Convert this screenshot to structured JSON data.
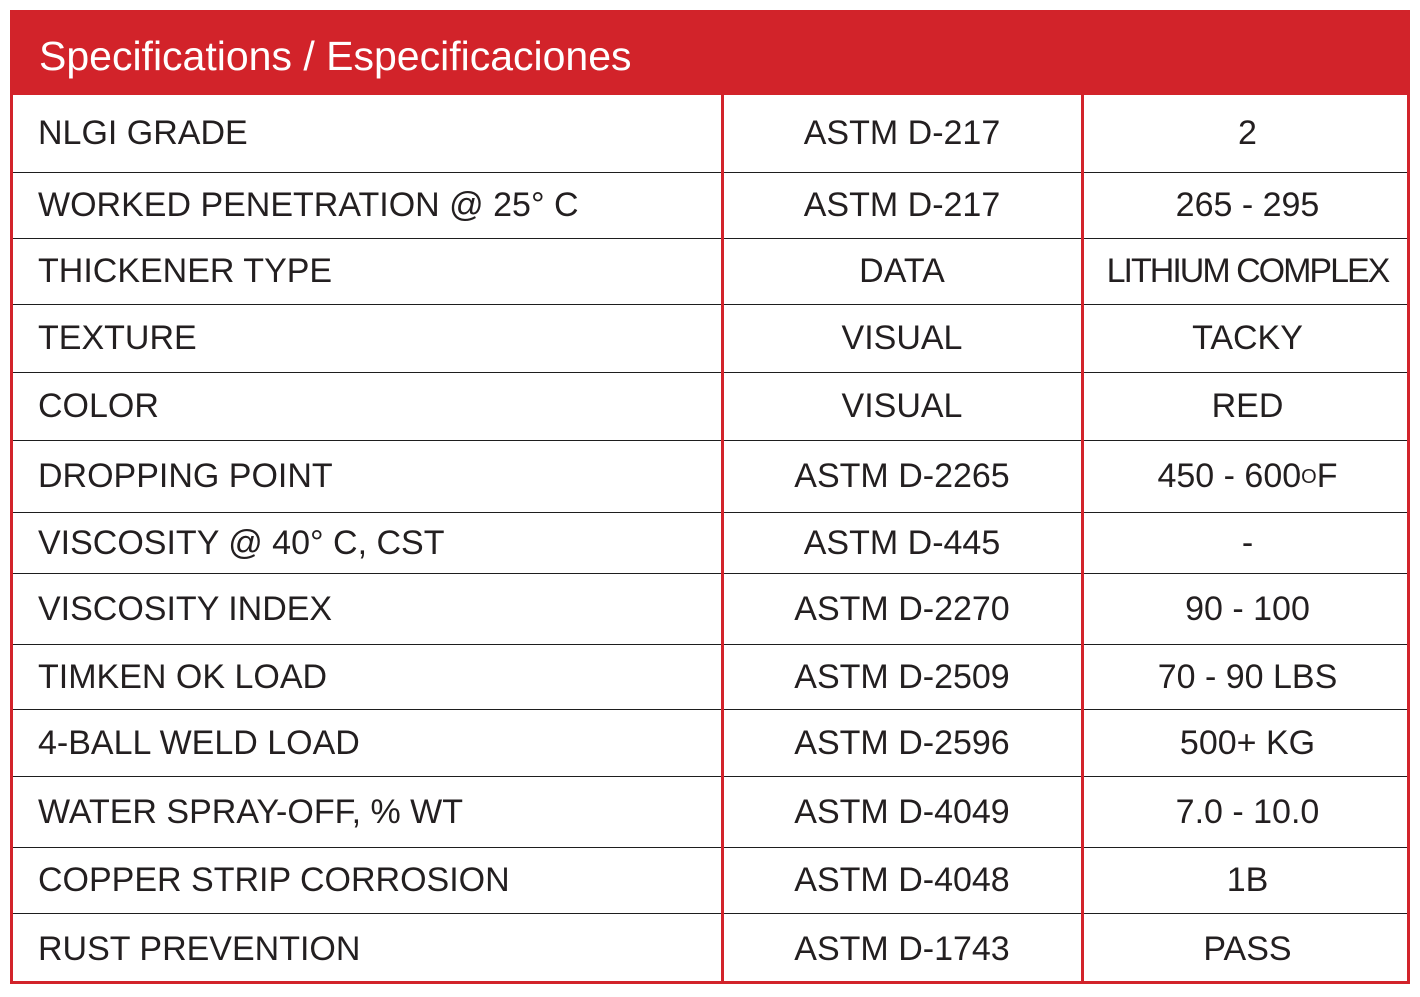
{
  "header": {
    "title": "Specifications / Especificaciones"
  },
  "rows": [
    {
      "property": "NLGI GRADE",
      "method": "ASTM D-217",
      "value": "2"
    },
    {
      "property": "WORKED PENETRATION @ 25° C",
      "method": "ASTM D-217",
      "value": "265 - 295"
    },
    {
      "property": "THICKENER TYPE",
      "method": "DATA",
      "value": "LITHIUM COMPLEX"
    },
    {
      "property": "TEXTURE",
      "method": "VISUAL",
      "value": "TACKY"
    },
    {
      "property": "COLOR",
      "method": "VISUAL",
      "value": "RED"
    },
    {
      "property": "DROPPING POINT",
      "method": "ASTM D-2265",
      "value": "450 - 600",
      "value_sup": "O",
      "value_suffix": "F"
    },
    {
      "property": "VISCOSITY @ 40° C, CST",
      "method": "ASTM D-445",
      "value": "-"
    },
    {
      "property": "VISCOSITY INDEX",
      "method": "ASTM D-2270",
      "value": "90 - 100"
    },
    {
      "property": "TIMKEN OK LOAD",
      "method": "ASTM D-2509",
      "value": "70 - 90 LBS"
    },
    {
      "property": "4-BALL WELD LOAD",
      "method": "ASTM D-2596",
      "value": "500+ KG"
    },
    {
      "property": "WATER SPRAY-OFF, % WT",
      "method": "ASTM D-4049",
      "value": "7.0 - 10.0"
    },
    {
      "property": "COPPER STRIP CORROSION",
      "method": "ASTM D-4048",
      "value": "1B"
    },
    {
      "property": "RUST PREVENTION",
      "method": "ASTM D-1743",
      "value": "PASS"
    }
  ],
  "colors": {
    "accent": "#d2232a",
    "text": "#231f20",
    "rule": "#1e1e1e"
  }
}
